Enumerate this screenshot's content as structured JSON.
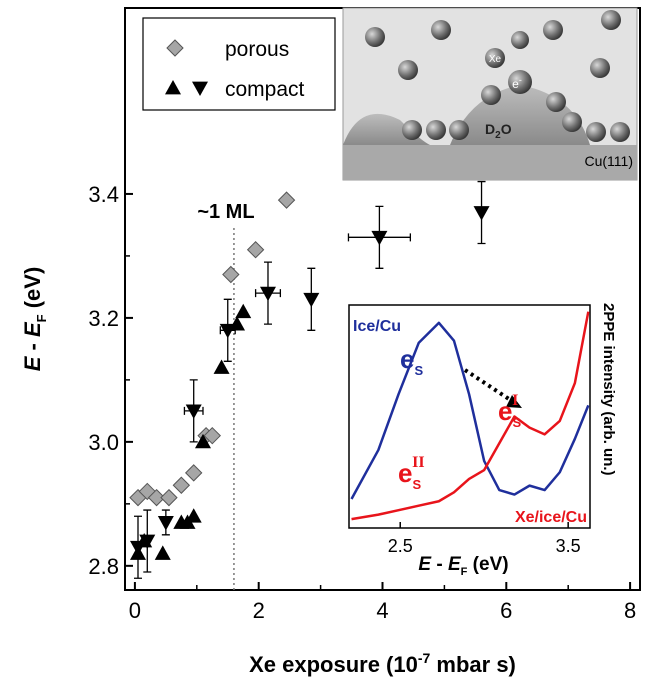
{
  "chart_data": [
    {
      "type": "scatter",
      "xlabel": {
        "text": "Xe exposure (10",
        "sup": "-7",
        "unit": " mbar s)"
      },
      "ylabel": {
        "a": "E",
        "dash": " - ",
        "b": "E",
        "sub": "F",
        "unit": " (eV)"
      },
      "xlim": [
        -0.16,
        8.16
      ],
      "ylim": [
        2.761,
        3.7
      ],
      "xticks": [
        0,
        2,
        4,
        6,
        8
      ],
      "xminor": [
        1,
        3,
        5,
        7
      ],
      "yticks": [
        2.8,
        {
          "value": 3,
          "label": "3.0"
        },
        3.2,
        3.4
      ],
      "yminor": [
        2.9,
        3.1,
        3.3
      ],
      "series": [
        {
          "name": "porous",
          "marker": "diamond",
          "color": "#a6a6a6",
          "x": [
            0.05,
            0.2,
            0.35,
            0.55,
            0.75,
            0.95,
            1.15,
            1.25,
            1.55,
            1.95,
            2.45
          ],
          "values": [
            2.91,
            2.92,
            2.91,
            2.91,
            2.93,
            2.95,
            3.01,
            3.01,
            3.27,
            3.31,
            3.39
          ]
        },
        {
          "name": "compact",
          "marker": "triangle-up",
          "color": "#000000",
          "x": [
            0.05,
            0.15,
            0.45,
            0.75,
            0.85,
            0.95,
            1.1,
            1.4,
            1.65,
            1.75
          ],
          "values": [
            2.82,
            2.84,
            2.82,
            2.87,
            2.87,
            2.88,
            3.0,
            3.12,
            3.19,
            3.21
          ]
        },
        {
          "marker": "triangle-down",
          "color": "#000000",
          "x": [
            0.05,
            0.2,
            0.5,
            0.95,
            1.5,
            2.15,
            2.85,
            3.95,
            5.6
          ],
          "values": [
            2.83,
            2.84,
            2.87,
            3.05,
            3.18,
            3.24,
            3.23,
            3.33,
            3.37
          ],
          "yerr": [
            0.05,
            0.05,
            0.02,
            0.05,
            0.05,
            0.05,
            0.05,
            0.05,
            0.05
          ],
          "xerr": [
            null,
            null,
            null,
            0.15,
            0.12,
            0.2,
            null,
            0.5,
            null
          ]
        }
      ],
      "vline": {
        "x": 1.6,
        "label": "~1 ML"
      },
      "legend": "upper left"
    },
    {
      "type": "line",
      "xlabel": {
        "a": "E",
        "dash": " - ",
        "b": "E",
        "sub": "F",
        "unit": " (eV)"
      },
      "ylabel": "2PPE intensity (arb. un.)",
      "xlim": [
        2.195,
        3.63
      ],
      "ylim": [
        0,
        1
      ],
      "xticks": [
        2.5,
        3.5
      ],
      "x": [
        2.21,
        2.37,
        2.49,
        2.61,
        2.73,
        2.82,
        2.91,
        3.0,
        3.09,
        3.18,
        3.27,
        3.36,
        3.45,
        3.54,
        3.62
      ],
      "series": [
        {
          "name": "Ice/Cu",
          "color": "#1f2f9c",
          "values": [
            0.13,
            0.35,
            0.6,
            0.83,
            0.92,
            0.84,
            0.6,
            0.3,
            0.17,
            0.15,
            0.19,
            0.17,
            0.25,
            0.4,
            0.55
          ]
        },
        {
          "name": "Xe/ice/Cu",
          "color": "#e8141b",
          "values": [
            0.04,
            0.06,
            0.08,
            0.1,
            0.12,
            0.16,
            0.22,
            0.26,
            0.38,
            0.5,
            0.45,
            0.42,
            0.48,
            0.65,
            0.97
          ]
        }
      ],
      "annotations": [
        {
          "base": "e",
          "sub": "S",
          "color": "#1f2f9c"
        },
        {
          "base": "e",
          "sub": "S",
          "sup": "I",
          "color": "#e8141b"
        },
        {
          "base": "e",
          "sub": "S",
          "sup": "II",
          "color": "#e8141b"
        }
      ]
    }
  ],
  "cartoon": {
    "xe": "Xe",
    "electron": "e",
    "electron_sup": "-",
    "water": "D",
    "water_sub": "2",
    "water_end": "O",
    "substrate": "Cu(111)"
  }
}
